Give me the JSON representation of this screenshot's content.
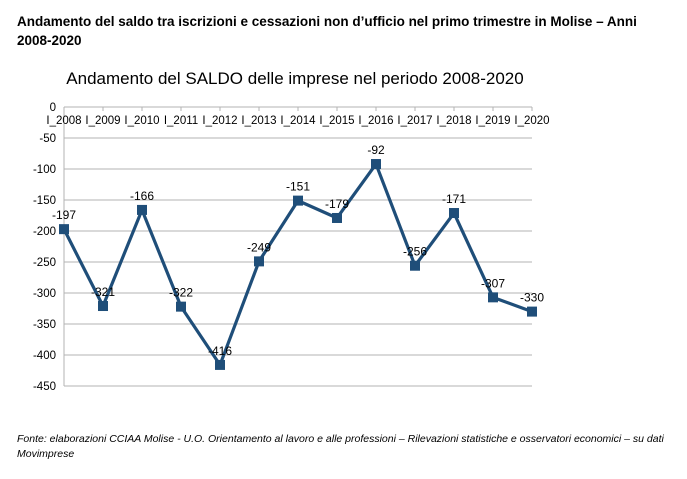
{
  "heading": "Andamento del saldo tra iscrizioni e cessazioni non d’ufficio nel primo trimestre in Molise – Anni 2008-2020",
  "footer": "Fonte: elaborazioni CCIAA Molise - U.O. Orientamento al lavoro e alle professioni – Rilevazioni statistiche e osservatori economici – su dati Movimprese",
  "chart_data": {
    "type": "line",
    "title": "Andamento del SALDO delle imprese nel periodo 2008-2020",
    "categories": [
      "I_2008",
      "I_2009",
      "I_2010",
      "I_2011",
      "I_2012",
      "I_2013",
      "I_2014",
      "I_2015",
      "I_2016",
      "I_2017",
      "I_2018",
      "I_2019",
      "I_2020"
    ],
    "values": [
      -197,
      -321,
      -166,
      -322,
      -416,
      -249,
      -151,
      -179,
      -92,
      -256,
      -171,
      -307,
      -330
    ],
    "data_labels": [
      "-197",
      "-321",
      "-166",
      "-322",
      "-416",
      "-249",
      "-151",
      "-179",
      "-92",
      "-256",
      "-171",
      "-307",
      "-330"
    ],
    "yticks": [
      "0",
      "-50",
      "-100",
      "-150",
      "-200",
      "-250",
      "-300",
      "-350",
      "-400",
      "-450"
    ],
    "ylim": [
      -450,
      0
    ],
    "xlabel": "",
    "ylabel": "",
    "grid": true,
    "legend": "none",
    "series_color": "#1f4e79"
  }
}
